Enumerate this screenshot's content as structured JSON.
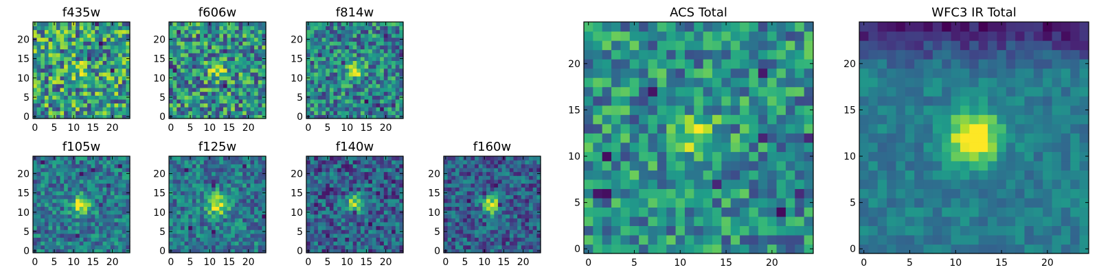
{
  "chart_data": [
    {
      "type": "heatmap",
      "title": "f435w",
      "grid_size": 25,
      "xticks": [
        0,
        5,
        10,
        15,
        20
      ],
      "yticks": [
        0,
        5,
        10,
        15,
        20
      ],
      "xlim": [
        0,
        24
      ],
      "ylim": [
        0,
        24
      ],
      "colormap": "viridis",
      "seed": 11,
      "source_peak": 0.2,
      "source_width": 1.6,
      "noise": 0.75,
      "floor": 0.55,
      "dark_spots": 4
    },
    {
      "type": "heatmap",
      "title": "f606w",
      "grid_size": 25,
      "xticks": [
        0,
        5,
        10,
        15,
        20
      ],
      "yticks": [
        0,
        5,
        10,
        15,
        20
      ],
      "xlim": [
        0,
        24
      ],
      "ylim": [
        0,
        24
      ],
      "colormap": "viridis",
      "seed": 23,
      "source_peak": 0.45,
      "source_width": 1.6,
      "noise": 0.7,
      "floor": 0.5,
      "dark_spots": 5
    },
    {
      "type": "heatmap",
      "title": "f814w",
      "grid_size": 25,
      "xticks": [
        0,
        5,
        10,
        15,
        20
      ],
      "yticks": [
        0,
        5,
        10,
        15,
        20
      ],
      "xlim": [
        0,
        24
      ],
      "ylim": [
        0,
        24
      ],
      "colormap": "viridis",
      "seed": 37,
      "source_peak": 0.55,
      "source_width": 1.5,
      "noise": 0.6,
      "floor": 0.45,
      "dark_spots": 8
    },
    {
      "type": "heatmap",
      "title": "f105w",
      "grid_size": 25,
      "xticks": [
        0,
        5,
        10,
        15,
        20
      ],
      "yticks": [
        0,
        5,
        10,
        15,
        20
      ],
      "xlim": [
        0,
        24
      ],
      "ylim": [
        0,
        24
      ],
      "colormap": "viridis",
      "seed": 41,
      "source_peak": 0.55,
      "source_width": 1.8,
      "noise": 0.45,
      "floor": 0.4,
      "dark_spots": 7
    },
    {
      "type": "heatmap",
      "title": "f125w",
      "grid_size": 25,
      "xticks": [
        0,
        5,
        10,
        15,
        20
      ],
      "yticks": [
        0,
        5,
        10,
        15,
        20
      ],
      "xlim": [
        0,
        24
      ],
      "ylim": [
        0,
        24
      ],
      "colormap": "viridis",
      "seed": 53,
      "source_peak": 0.55,
      "source_width": 2.0,
      "noise": 0.45,
      "floor": 0.4,
      "dark_spots": 7
    },
    {
      "type": "heatmap",
      "title": "f140w",
      "grid_size": 25,
      "xticks": [
        0,
        5,
        10,
        15,
        20
      ],
      "yticks": [
        0,
        5,
        10,
        15,
        20
      ],
      "xlim": [
        0,
        24
      ],
      "ylim": [
        0,
        24
      ],
      "colormap": "viridis",
      "seed": 61,
      "source_peak": 0.55,
      "source_width": 1.8,
      "noise": 0.5,
      "floor": 0.3,
      "dark_spots": 10
    },
    {
      "type": "heatmap",
      "title": "f160w",
      "grid_size": 25,
      "xticks": [
        0,
        5,
        10,
        15,
        20
      ],
      "yticks": [
        0,
        5,
        10,
        15,
        20
      ],
      "xlim": [
        0,
        24
      ],
      "ylim": [
        0,
        24
      ],
      "colormap": "viridis",
      "seed": 71,
      "source_peak": 0.6,
      "source_width": 1.8,
      "noise": 0.45,
      "floor": 0.3,
      "dark_spots": 8
    },
    {
      "type": "heatmap",
      "title": "ACS Total",
      "grid_size": 25,
      "xticks": [
        0,
        5,
        10,
        15,
        20
      ],
      "yticks": [
        0,
        5,
        10,
        15,
        20
      ],
      "xlim": [
        0,
        24
      ],
      "ylim": [
        0,
        24
      ],
      "colormap": "viridis",
      "seed": 83,
      "source_peak": 0.45,
      "source_width": 1.6,
      "noise": 0.55,
      "floor": 0.5,
      "dark_spots": 10
    },
    {
      "type": "heatmap",
      "title": "WFC3 IR Total",
      "grid_size": 25,
      "xticks": [
        0,
        5,
        10,
        15,
        20
      ],
      "yticks": [
        0,
        5,
        10,
        15,
        20
      ],
      "xlim": [
        0,
        24
      ],
      "ylim": [
        0,
        24
      ],
      "colormap": "viridis",
      "seed": 97,
      "source_peak": 0.75,
      "source_width": 1.9,
      "noise": 0.22,
      "floor": 0.4,
      "dark_spots": 0
    }
  ]
}
